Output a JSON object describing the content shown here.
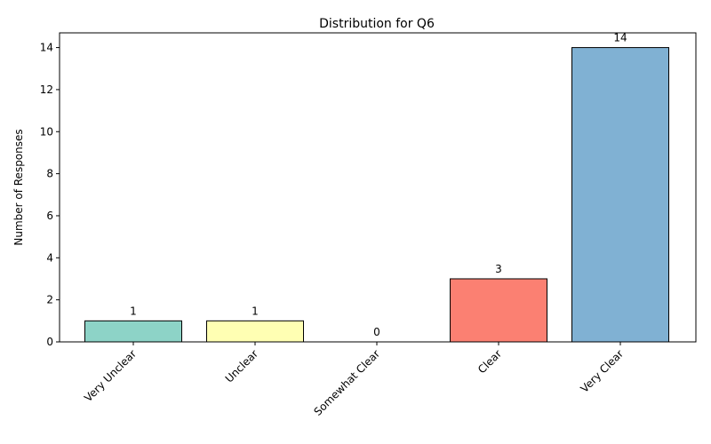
{
  "chart_data": {
    "type": "bar",
    "title": "Distribution for Q6",
    "xlabel": "",
    "ylabel": "Number of Responses",
    "categories": [
      "Very Unclear",
      "Unclear",
      "Somewhat Clear",
      "Clear",
      "Very Clear"
    ],
    "values": [
      1,
      1,
      0,
      3,
      14
    ],
    "data_labels": [
      "1",
      "1",
      "0",
      "3",
      "14"
    ],
    "colors": [
      "#8dd3c7",
      "#ffffb3",
      "#bebada",
      "#fb8072",
      "#80b1d3"
    ],
    "edge_color": "#000000",
    "ylim": [
      0,
      14.7
    ],
    "yticks": [
      0,
      2,
      4,
      6,
      8,
      10,
      12,
      14
    ],
    "ytick_labels": [
      "0",
      "2",
      "4",
      "6",
      "8",
      "10",
      "12",
      "14"
    ],
    "grid": false,
    "legend": "none"
  }
}
